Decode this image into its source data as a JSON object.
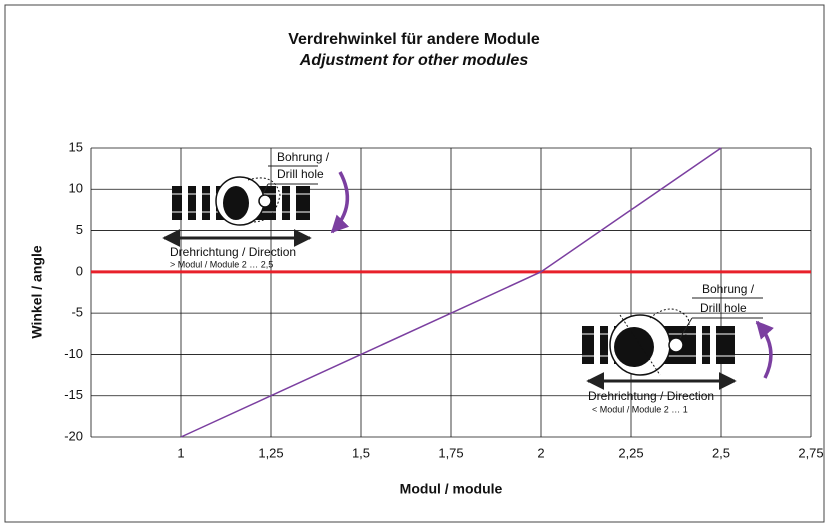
{
  "chart_data": {
    "type": "line",
    "title": "Verdrehwinkel für andere Module",
    "subtitle": "Adjustment for other modules",
    "x_label": "Modul / module",
    "y_label": "Winkel / angle",
    "x": [
      1,
      1.25,
      1.5,
      1.75,
      2,
      2.25,
      2.5
    ],
    "series": [
      {
        "color": "#7b3fa0",
        "values": [
          -20,
          -15,
          -10,
          -5,
          0,
          7.5,
          15
        ]
      }
    ],
    "xlim": [
      0.75,
      2.75
    ],
    "xticks": [
      1,
      {
        "value": 1.25,
        "label": "1,25"
      },
      {
        "value": 1.5,
        "label": "1,5"
      },
      {
        "value": 1.75,
        "label": "1,75"
      },
      2,
      {
        "value": 2.25,
        "label": "2,25"
      },
      {
        "value": 2.5,
        "label": "2,5"
      },
      {
        "value": 2.75,
        "label": "2,75"
      }
    ],
    "ylim": [
      -20,
      15
    ],
    "yticks": [
      -20,
      -15,
      -10,
      -5,
      0,
      5,
      10,
      15
    ],
    "grid": true,
    "hline": {
      "value": 0,
      "color": "#e8202a"
    },
    "annotations": [
      "Bohrung /",
      "Drill hole",
      "Drehrichtung / Direction",
      "> Modul / Module 2 … 2,5",
      "Bohrung /",
      "Drill hole",
      "Drehrichtung / Direction",
      "< Modul / Module 2 … 1"
    ]
  }
}
